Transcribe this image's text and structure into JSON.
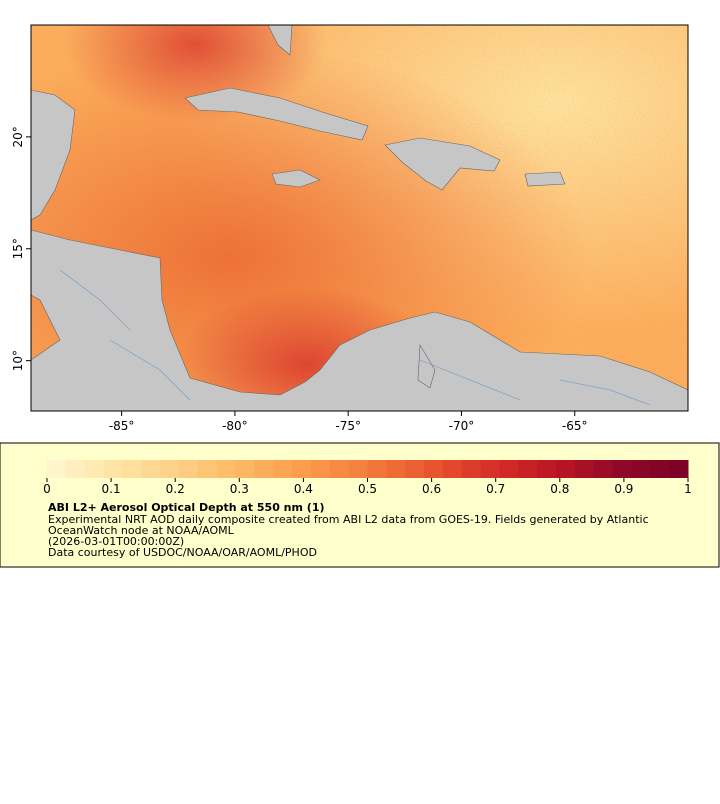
{
  "map": {
    "xlim": [
      -89,
      -60
    ],
    "ylim": [
      7.75,
      25
    ],
    "xticks": [
      {
        "value": -85,
        "label": "-85°"
      },
      {
        "value": -80,
        "label": "-80°"
      },
      {
        "value": -75,
        "label": "-75°"
      },
      {
        "value": -70,
        "label": "-70°"
      },
      {
        "value": -65,
        "label": "-65°"
      }
    ],
    "yticks": [
      {
        "value": 10,
        "label": "10°"
      },
      {
        "value": 15,
        "label": "15°"
      },
      {
        "value": 20,
        "label": "20°"
      }
    ],
    "land_color": "#c6c6c6"
  },
  "colorbar": {
    "range": [
      0,
      1
    ],
    "ticks": [
      0,
      0.1,
      0.2,
      0.3,
      0.4,
      0.5,
      0.6,
      0.7,
      0.8,
      0.9,
      1
    ],
    "colors": [
      "#fff6d2",
      "#fee6a6",
      "#fdd088",
      "#fdb864",
      "#fb9c4c",
      "#f47c3c",
      "#e9552e",
      "#d52d28",
      "#b81524",
      "#8f0828",
      "#7a0026"
    ]
  },
  "legend": {
    "title": "ABI L2+ Aerosol Optical Depth at 550 nm (1)",
    "lines": [
      "Experimental NRT AOD daily composite created from ABI L2 data from GOES-19. Fields generated by Atlantic",
      "OceanWatch node at NOAA/AOML",
      "(2026-03-01T00:00:00Z)",
      "Data courtesy of USDOC/NOAA/OAR/AOML/PHOD"
    ]
  }
}
